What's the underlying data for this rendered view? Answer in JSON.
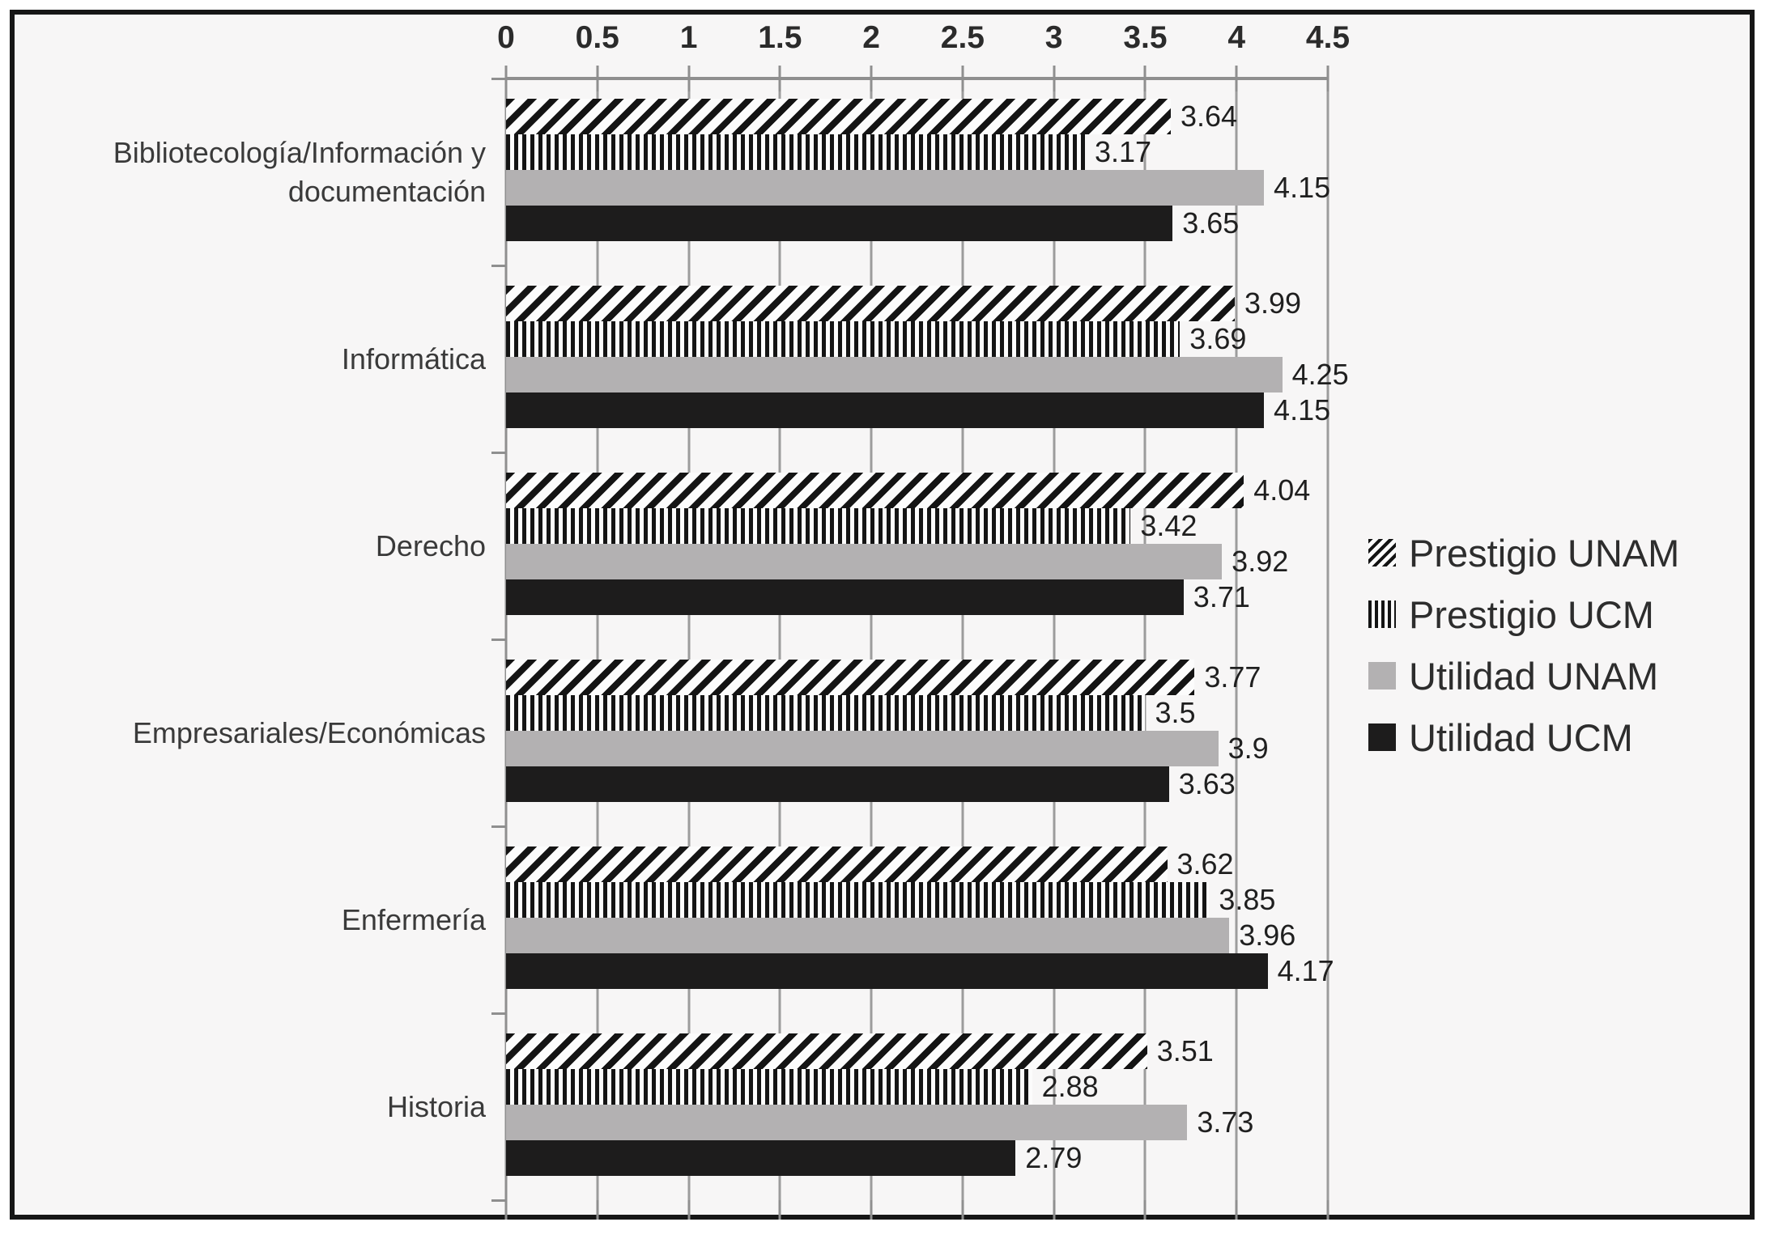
{
  "chart_data": {
    "type": "bar",
    "orientation": "horizontal",
    "title": "",
    "xlabel": "",
    "ylabel": "",
    "xlim": [
      0,
      4.5
    ],
    "xtick_labels": [
      "0",
      "0.5",
      "1",
      "1.5",
      "2",
      "2.5",
      "3",
      "3.5",
      "4",
      "4.5"
    ],
    "grid": true,
    "legend_position": "right",
    "categories": [
      "Bibliotecología/Información y\ndocumentación",
      "Informática",
      "Derecho",
      "Empresariales/Económicas",
      "Enfermería",
      "Historia"
    ],
    "series": [
      {
        "name": "Prestigio UNAM",
        "pattern": "diagonal-hatch",
        "values": [
          3.64,
          3.99,
          4.04,
          3.77,
          3.62,
          3.51
        ],
        "labels": [
          "3.64",
          "3.99",
          "4.04",
          "3.77",
          "3.62",
          "3.51"
        ]
      },
      {
        "name": "Prestigio UCM",
        "pattern": "vertical-stripes",
        "values": [
          3.17,
          3.69,
          3.42,
          3.5,
          3.85,
          2.88
        ],
        "labels": [
          "3.17",
          "3.69",
          "3.42",
          "3.5",
          "3.85",
          "2.88"
        ]
      },
      {
        "name": "Utilidad UNAM",
        "pattern": "solid-gray",
        "values": [
          4.15,
          4.25,
          3.92,
          3.9,
          3.96,
          3.73
        ],
        "labels": [
          "4.15",
          "4.25",
          "3.92",
          "3.9",
          "3.96",
          "3.73"
        ]
      },
      {
        "name": "Utilidad UCM",
        "pattern": "solid-black",
        "values": [
          3.65,
          4.15,
          3.71,
          3.63,
          4.17,
          2.79
        ],
        "labels": [
          "3.65",
          "4.15",
          "3.71",
          "3.63",
          "4.17",
          "2.79"
        ]
      }
    ]
  },
  "colors": {
    "bar_gray": "#b3b1b2",
    "bar_black": "#1d1c1c",
    "hatch_ink": "#141414",
    "grid_line": "#9c9c9c",
    "axis_line": "#8f8f8f",
    "text": "#2b2b2b",
    "frame_border": "#161616",
    "background": "#f7f6f6"
  }
}
